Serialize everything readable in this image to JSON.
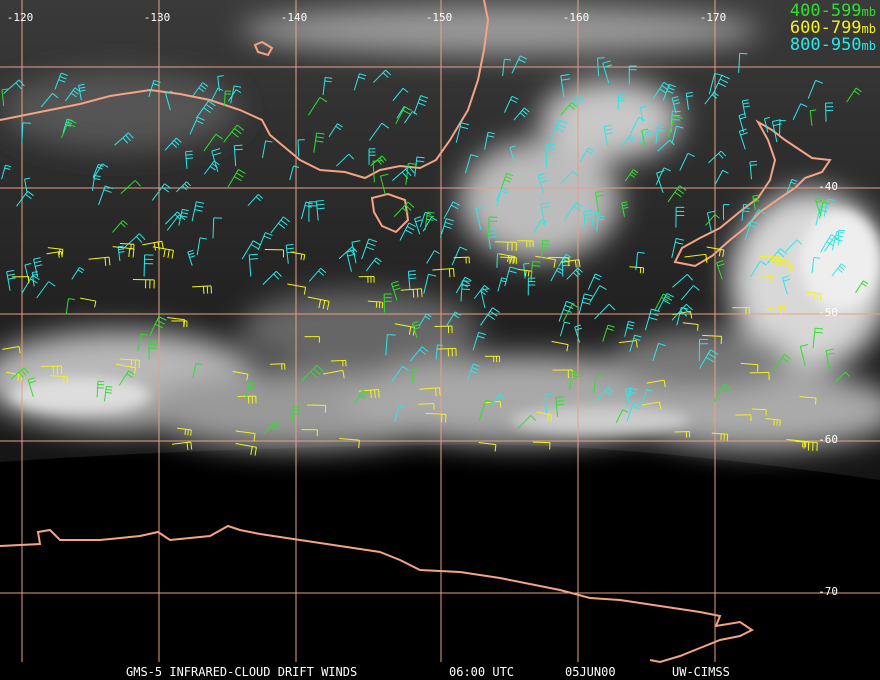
{
  "map": {
    "longitude_labels": [
      "-120",
      "-130",
      "-140",
      "-150",
      "-160",
      "-170"
    ],
    "latitude_labels": [
      "-40",
      "-50",
      "-60",
      "-70"
    ],
    "legend": [
      {
        "range": "400-599",
        "unit": "mb",
        "color": "#2ee02e"
      },
      {
        "range": "600-799",
        "unit": "mb",
        "color": "#f2f21e"
      },
      {
        "range": "800-950",
        "unit": "mb",
        "color": "#2ee6e6"
      }
    ],
    "footer": [
      "GMS-5 INFRARED-CLOUD DRIFT WINDS",
      "06:00 UTC",
      "05JUN00",
      "UW-CIMSS"
    ]
  }
}
